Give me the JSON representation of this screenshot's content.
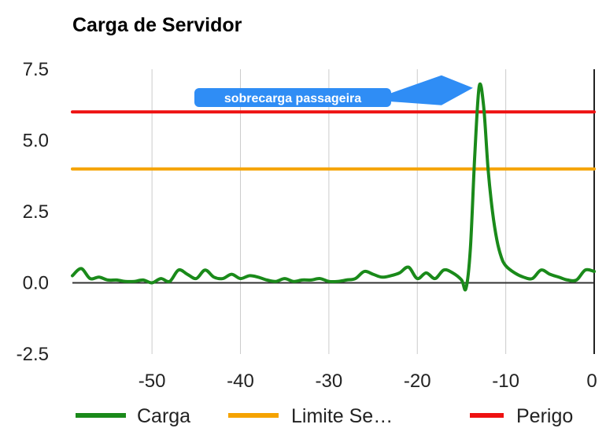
{
  "chart_data": {
    "type": "line",
    "title": "Carga de Servidor",
    "xlabel": "",
    "ylabel": "",
    "xlim": [
      -59,
      0
    ],
    "ylim": [
      -2.5,
      7.5
    ],
    "x_ticks": [
      -50,
      -40,
      -30,
      -20,
      -10,
      0
    ],
    "x_tick_labels": [
      "-50",
      "-40",
      "-30",
      "-20",
      "-10",
      "0"
    ],
    "y_ticks": [
      -2.5,
      0,
      2.5,
      5,
      7.5
    ],
    "y_tick_labels": [
      "-2.5",
      "0.0",
      "2.5",
      "5.0",
      "7.5"
    ],
    "grid": "vertical",
    "legend": "bottom",
    "series": [
      {
        "name": "Carga",
        "color": "#1a8a1a",
        "x": [
          -59,
          -58,
          -57,
          -56,
          -55,
          -54,
          -53,
          -52,
          -51,
          -50,
          -49,
          -48,
          -47,
          -46,
          -45,
          -44,
          -43,
          -42,
          -41,
          -40,
          -39,
          -38,
          -37,
          -36,
          -35,
          -34,
          -33,
          -32,
          -31,
          -30,
          -29,
          -28,
          -27,
          -26,
          -25,
          -24,
          -23,
          -22,
          -21,
          -20,
          -19,
          -18,
          -17,
          -16,
          -15,
          -14.5,
          -14,
          -13.5,
          -13,
          -12.5,
          -12,
          -11.5,
          -11,
          -10.5,
          -10,
          -9,
          -8,
          -7,
          -6,
          -5,
          -4,
          -3,
          -2,
          -1,
          0
        ],
        "y": [
          0.25,
          0.5,
          0.15,
          0.2,
          0.1,
          0.1,
          0.05,
          0.05,
          0.1,
          0.0,
          0.15,
          0.05,
          0.45,
          0.3,
          0.15,
          0.45,
          0.2,
          0.15,
          0.3,
          0.15,
          0.25,
          0.2,
          0.1,
          0.05,
          0.15,
          0.05,
          0.1,
          0.1,
          0.15,
          0.05,
          0.05,
          0.1,
          0.15,
          0.4,
          0.3,
          0.2,
          0.25,
          0.35,
          0.55,
          0.15,
          0.35,
          0.15,
          0.45,
          0.35,
          0.1,
          -0.2,
          1.2,
          4.5,
          6.9,
          6.2,
          4.0,
          2.5,
          1.5,
          0.9,
          0.6,
          0.35,
          0.2,
          0.15,
          0.45,
          0.3,
          0.2,
          0.1,
          0.1,
          0.45,
          0.4
        ]
      },
      {
        "name": "Limite Se…",
        "color": "#f5a300",
        "x": [
          -59,
          0
        ],
        "y": [
          4,
          4
        ]
      },
      {
        "name": "Perigo",
        "color": "#ee1111",
        "x": [
          -59,
          0
        ],
        "y": [
          6,
          6
        ]
      }
    ],
    "annotations": [
      {
        "text": "sobrecarga passageira",
        "x": -13,
        "y": 6.9
      }
    ]
  }
}
